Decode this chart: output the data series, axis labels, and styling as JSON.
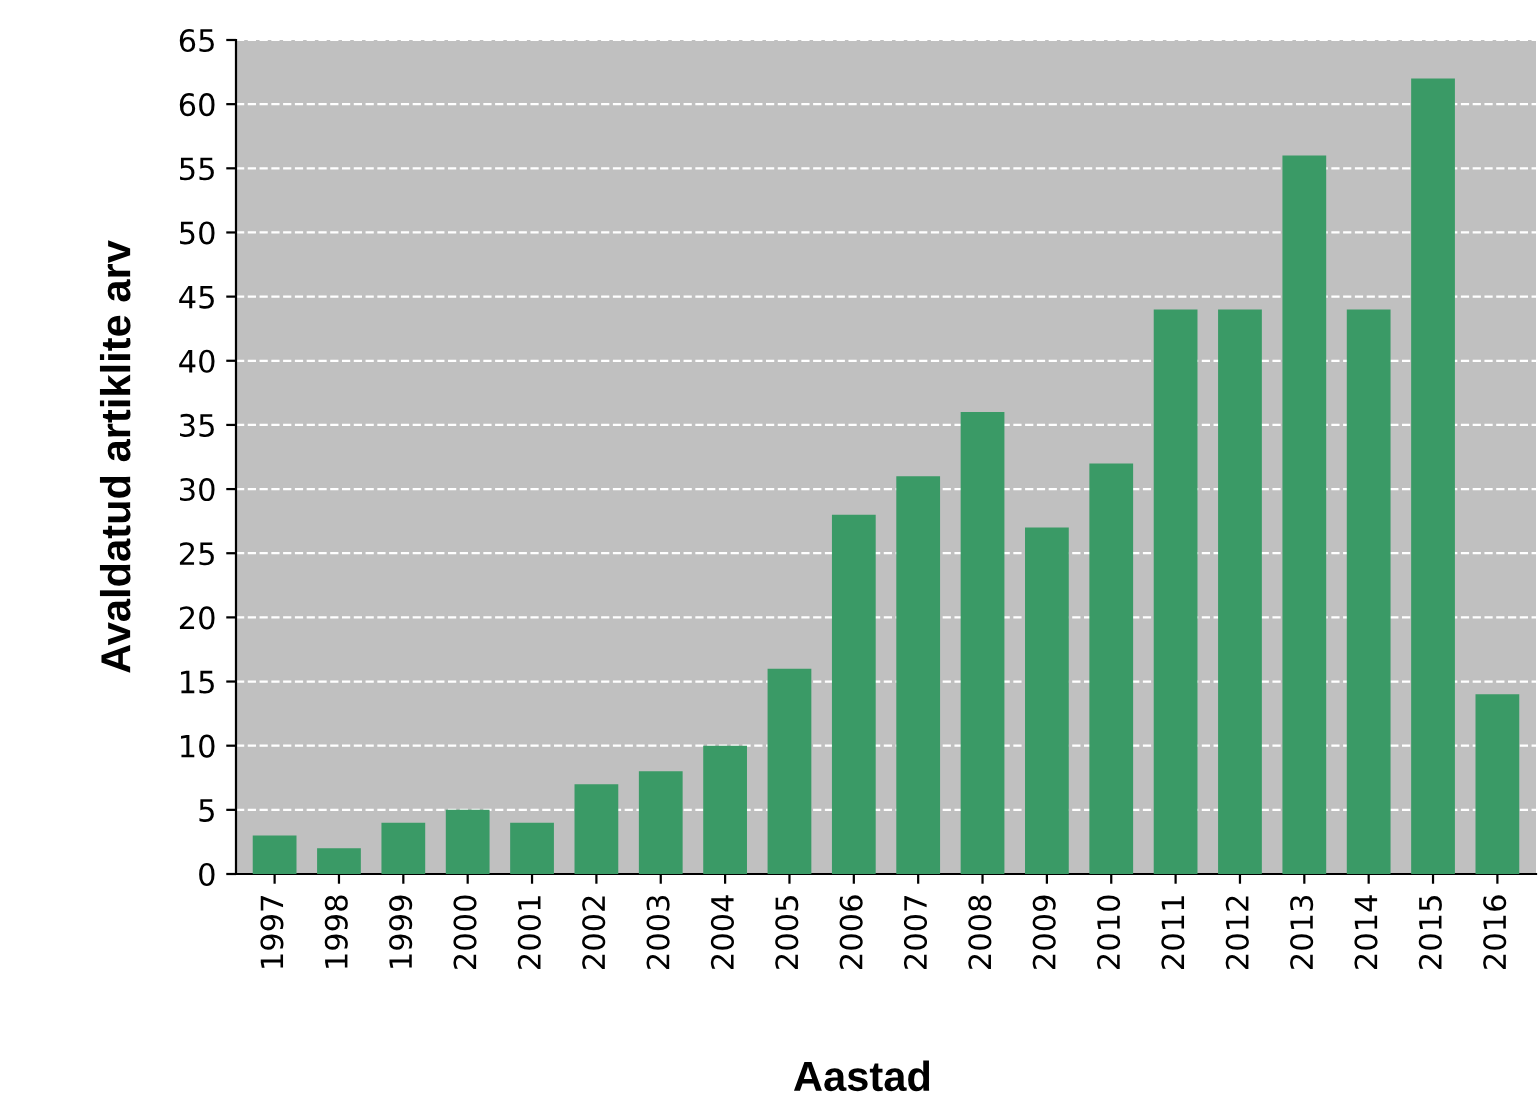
{
  "chart_data": {
    "type": "bar",
    "xlabel": "Aastad",
    "ylabel": "Avaldatud artiklite arv",
    "categories": [
      "1997",
      "1998",
      "1999",
      "2000",
      "2001",
      "2002",
      "2003",
      "2004",
      "2005",
      "2006",
      "2007",
      "2008",
      "2009",
      "2010",
      "2011",
      "2012",
      "2013",
      "2014",
      "2015",
      "2016"
    ],
    "values": [
      3,
      2,
      4,
      5,
      4,
      7,
      8,
      10,
      16,
      28,
      31,
      36,
      27,
      32,
      44,
      44,
      56,
      44,
      62,
      14
    ],
    "color": "#3a9a66",
    "ylim": [
      0,
      65
    ],
    "yticks": [
      0,
      5,
      10,
      15,
      20,
      25,
      30,
      35,
      40,
      45,
      50,
      55,
      60,
      65
    ],
    "grid": "y"
  }
}
